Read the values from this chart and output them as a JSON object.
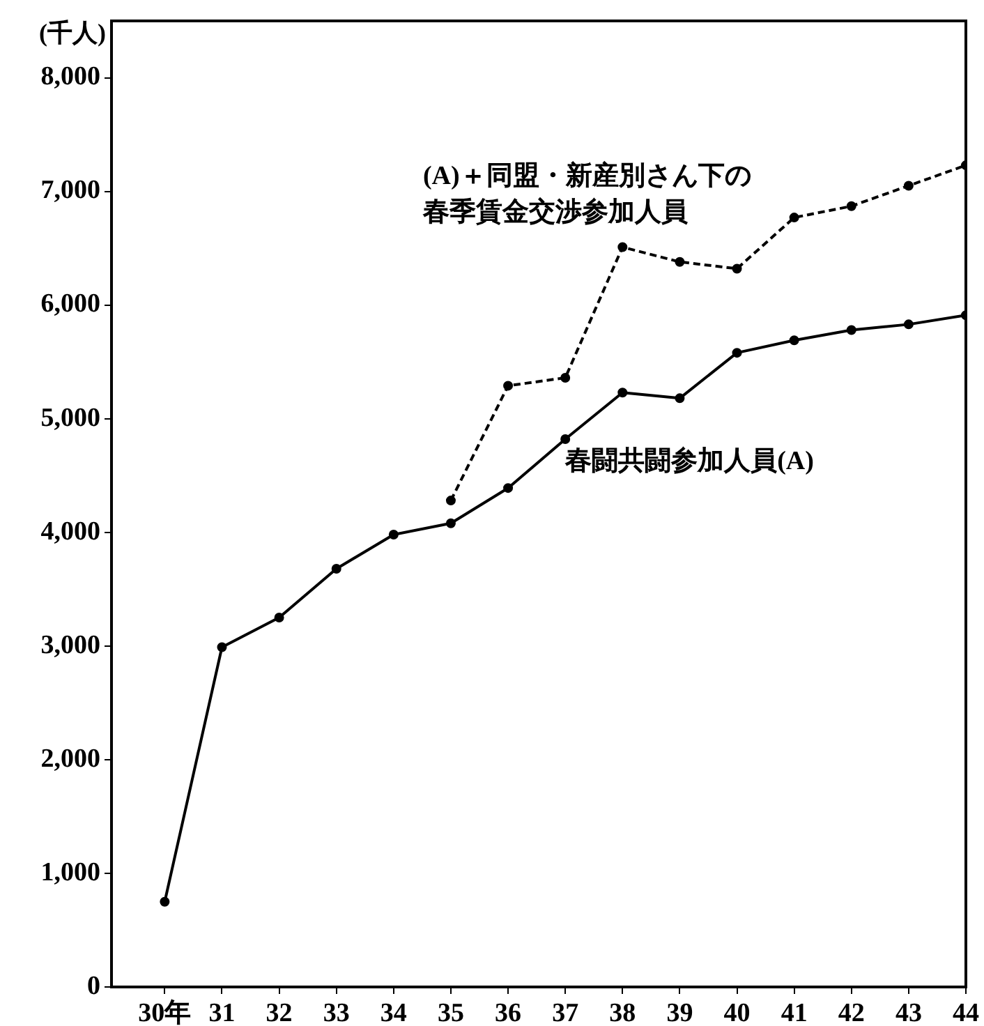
{
  "chart_data": {
    "type": "line",
    "ylabel": "(千人)",
    "x": [
      30,
      31,
      32,
      33,
      34,
      35,
      36,
      37,
      38,
      39,
      40,
      41,
      42,
      43,
      44
    ],
    "xlim": [
      29.07,
      44
    ],
    "xticks": [
      {
        "value": 30,
        "label": "30年"
      },
      31,
      32,
      33,
      34,
      35,
      36,
      37,
      38,
      39,
      40,
      41,
      42,
      43,
      44
    ],
    "ylim": [
      0,
      8500
    ],
    "yticks": [
      0,
      {
        "value": 1000,
        "label": "1,000"
      },
      {
        "value": 2000,
        "label": "2,000"
      },
      {
        "value": 3000,
        "label": "3,000"
      },
      {
        "value": 4000,
        "label": "4,000"
      },
      {
        "value": 5000,
        "label": "5,000"
      },
      {
        "value": 6000,
        "label": "6,000"
      },
      {
        "value": 7000,
        "label": "7,000"
      },
      {
        "value": 8000,
        "label": "8,000"
      }
    ],
    "series": [
      {
        "name": "春闘共闘参加人員(A)",
        "color": "#000000",
        "line_style": "solid",
        "values": [
          750,
          2990,
          3250,
          3680,
          3980,
          4080,
          4390,
          4820,
          5230,
          5180,
          5580,
          5690,
          5780,
          5830,
          5910
        ]
      },
      {
        "name": "(A)＋同盟・新産別さん下の春季賃金交渉参加人員",
        "color": "#000000",
        "line_style": "dashed",
        "values": [
          null,
          null,
          null,
          null,
          null,
          4280,
          5290,
          5360,
          6510,
          6380,
          6320,
          6770,
          6870,
          7050,
          7230
        ]
      }
    ],
    "grid": false,
    "legend": false,
    "marker": "circle"
  }
}
